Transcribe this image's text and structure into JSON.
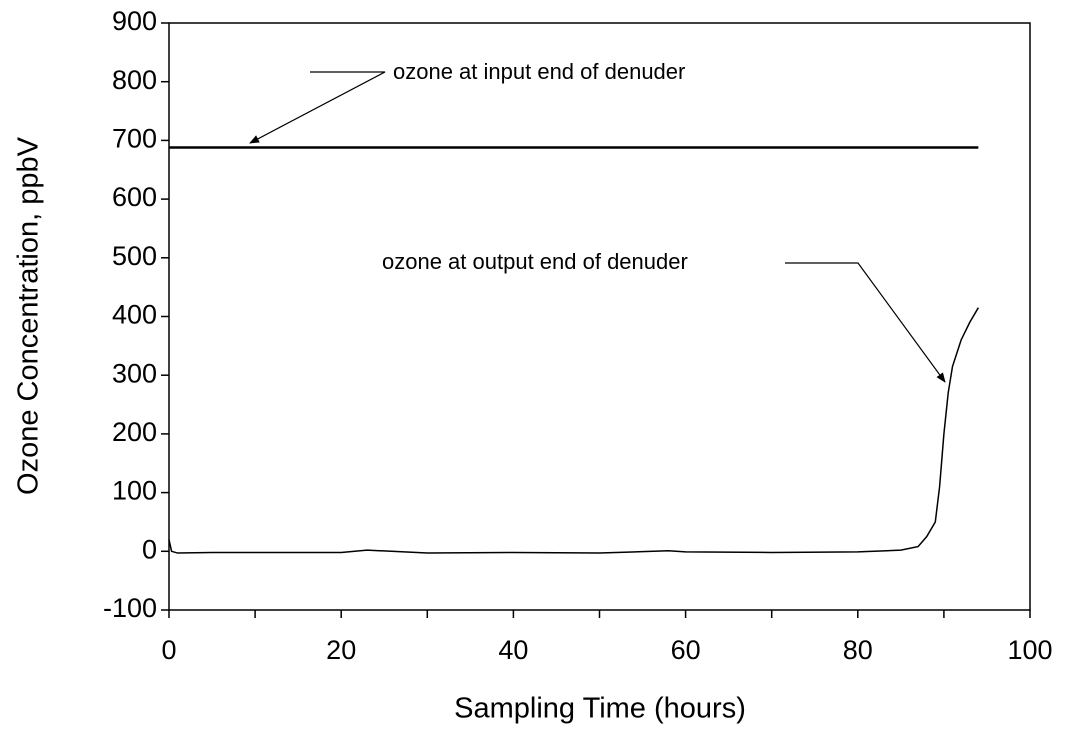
{
  "chart_data": {
    "type": "line",
    "x_label": "Sampling Time (hours)",
    "y_label": "Ozone Concentration, ppbV",
    "xlim": [
      0,
      100
    ],
    "xticks": [
      0,
      20,
      40,
      60,
      80,
      100
    ],
    "xminorticks": [
      10,
      30,
      50,
      70,
      90
    ],
    "ylim": [
      -100,
      900
    ],
    "yticks": [
      -100,
      0,
      100,
      200,
      300,
      400,
      500,
      600,
      700,
      800,
      900
    ],
    "grid": false,
    "series": [
      {
        "color": "#000000",
        "width": 2.5,
        "x": [
          0,
          94
        ],
        "values": [
          688,
          688
        ]
      },
      {
        "color": "#000000",
        "width": 1.5,
        "x": [
          0,
          0.3,
          1,
          5,
          10,
          20,
          23,
          30,
          40,
          50,
          58,
          60,
          70,
          80,
          85,
          87,
          88,
          89,
          89.5,
          90,
          90.5,
          91,
          92,
          93,
          94
        ],
        "values": [
          20,
          0,
          -3,
          -2,
          -2,
          -2,
          2,
          -3,
          -2,
          -3,
          1,
          -1,
          -2,
          -1,
          2,
          8,
          25,
          50,
          110,
          200,
          270,
          315,
          360,
          390,
          415
        ]
      }
    ],
    "annotations": [
      {
        "text": "ozone at input end of denuder"
      },
      {
        "text": "ozone at output end of denuder"
      }
    ]
  }
}
